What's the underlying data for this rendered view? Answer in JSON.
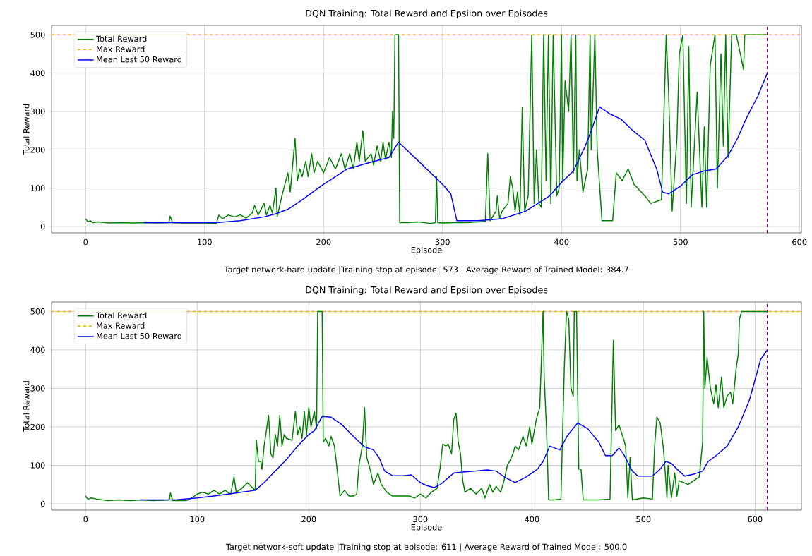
{
  "chart_data": [
    {
      "type": "line",
      "title": "DQN Training: Total Reward and Epsilon over Episodes",
      "xlabel": "Episode",
      "ylabel": "Total Reward",
      "xlim": [
        -28.65,
        601.65
      ],
      "ylim": [
        -16.6,
        524.6
      ],
      "xticks": [
        0,
        100,
        200,
        300,
        400,
        500,
        600
      ],
      "yticks": [
        0,
        100,
        200,
        300,
        400,
        500
      ],
      "grid": true,
      "legend": "top left",
      "series": [
        {
          "name": "Total Reward",
          "color": "#008000",
          "x": [
            0,
            2,
            4,
            6,
            10,
            20,
            30,
            40,
            50,
            60,
            70,
            71,
            73,
            80,
            90,
            100,
            110,
            112,
            115,
            120,
            125,
            130,
            135,
            140,
            142,
            145,
            150,
            152,
            155,
            157,
            160,
            161,
            165,
            170,
            172,
            176,
            178,
            180,
            182,
            185,
            187,
            190,
            192,
            195,
            200,
            205,
            210,
            215,
            218,
            222,
            225,
            228,
            230,
            233,
            235,
            240,
            242,
            245,
            248,
            250,
            252,
            255,
            257,
            258,
            259,
            260,
            262,
            263,
            264,
            270,
            280,
            290,
            294,
            295,
            296,
            300,
            310,
            320,
            330,
            336,
            338,
            340,
            345,
            346,
            348,
            350,
            355,
            357,
            359,
            361,
            363,
            365,
            367,
            369,
            372,
            375,
            377,
            379,
            381,
            383,
            385,
            387,
            389,
            391,
            393,
            396,
            398,
            400,
            401,
            403,
            406,
            408,
            410,
            412,
            413,
            415,
            418,
            422,
            424,
            425,
            428,
            430,
            434,
            443,
            446,
            451,
            456,
            461,
            470,
            475,
            484,
            488,
            490,
            493,
            497,
            499,
            502,
            505,
            507,
            509,
            514,
            518,
            520,
            522,
            525,
            529,
            531,
            534,
            536,
            538,
            540,
            543,
            547,
            553,
            554,
            573
          ],
          "values": [
            20,
            12,
            15,
            10,
            12,
            9,
            10,
            9,
            10,
            9,
            10,
            27,
            10,
            9,
            9,
            9,
            8,
            30,
            20,
            30,
            25,
            30,
            22,
            35,
            55,
            30,
            60,
            30,
            55,
            35,
            100,
            25,
            80,
            140,
            90,
            230,
            120,
            150,
            130,
            170,
            130,
            190,
            140,
            170,
            140,
            180,
            150,
            190,
            150,
            190,
            150,
            220,
            170,
            250,
            170,
            190,
            160,
            210,
            170,
            220,
            175,
            220,
            180,
            300,
            230,
            500,
            500,
            500,
            10,
            10,
            12,
            8,
            10,
            130,
            10,
            9,
            10,
            10,
            12,
            14,
            190,
            15,
            40,
            80,
            20,
            40,
            60,
            130,
            100,
            40,
            90,
            30,
            310,
            40,
            80,
            500,
            60,
            200,
            60,
            50,
            500,
            120,
            500,
            60,
            500,
            80,
            100,
            500,
            120,
            380,
            300,
            500,
            140,
            500,
            120,
            200,
            90,
            150,
            500,
            200,
            500,
            200,
            15,
            15,
            140,
            120,
            150,
            110,
            80,
            60,
            70,
            500,
            350,
            40,
            230,
            450,
            500,
            60,
            470,
            50,
            350,
            50,
            260,
            50,
            420,
            500,
            100,
            450,
            210,
            500,
            180,
            500,
            500,
            410,
            500,
            500
          ]
        },
        {
          "name": "Mean Last 50 Reward",
          "color": "#0000ff",
          "x": [
            49,
            100,
            110,
            130,
            150,
            160,
            170,
            180,
            200,
            220,
            240,
            255,
            263,
            280,
            300,
            307,
            312,
            330,
            350,
            370,
            390,
            400,
            410,
            420,
            425,
            432,
            440,
            450,
            460,
            470,
            480,
            485,
            490,
            500,
            510,
            520,
            530,
            540,
            548,
            555,
            565,
            573
          ],
          "values": [
            10,
            10,
            10,
            15,
            25,
            33,
            45,
            65,
            110,
            150,
            168,
            180,
            220,
            170,
            110,
            85,
            15,
            15,
            20,
            40,
            80,
            115,
            145,
            210,
            250,
            312,
            295,
            280,
            250,
            225,
            150,
            90,
            85,
            105,
            135,
            145,
            150,
            185,
            230,
            280,
            340,
            400
          ]
        }
      ],
      "ref_lines": [
        {
          "axis": "y",
          "value": 500,
          "label": "Max Reward",
          "color": "#ffa500",
          "line_style": "dashed"
        },
        {
          "axis": "x",
          "value": 573,
          "color": "#800080",
          "line_style": "dashed"
        }
      ],
      "annotations": [
        "Target network-hard update |Training stop at episode: 573 |  Average Reward of Trained Model: 384.7"
      ]
    },
    {
      "type": "line",
      "title": "DQN Training: Total Reward and Epsilon over Episodes",
      "xlabel": "Episode",
      "ylabel": "Total Reward",
      "xlim": [
        -30.55,
        641.55
      ],
      "ylim": [
        -16.6,
        524.6
      ],
      "xticks": [
        0,
        100,
        200,
        300,
        400,
        500,
        600
      ],
      "yticks": [
        0,
        100,
        200,
        300,
        400,
        500
      ],
      "grid": true,
      "legend": "top left",
      "series": [
        {
          "name": "Total Reward",
          "color": "#008000",
          "x": [
            0,
            2,
            5,
            10,
            20,
            30,
            40,
            50,
            60,
            70,
            75,
            76,
            78,
            90,
            95,
            100,
            105,
            110,
            115,
            120,
            125,
            130,
            133,
            135,
            140,
            145,
            150,
            152,
            153,
            155,
            157,
            158,
            160,
            164,
            166,
            168,
            170,
            172,
            174,
            176,
            178,
            180,
            185,
            188,
            190,
            192,
            194,
            196,
            198,
            200,
            202,
            205,
            207,
            208,
            210,
            212,
            213,
            215,
            218,
            220,
            223,
            225,
            228,
            232,
            236,
            240,
            243,
            245,
            248,
            250,
            252,
            255,
            258,
            262,
            265,
            270,
            275,
            280,
            290,
            295,
            300,
            305,
            310,
            315,
            318,
            320,
            323,
            325,
            328,
            330,
            332,
            334,
            336,
            338,
            340,
            345,
            350,
            355,
            358,
            362,
            365,
            368,
            372,
            375,
            378,
            380,
            383,
            385,
            388,
            392,
            395,
            398,
            400,
            404,
            407,
            410,
            411,
            413,
            415,
            420,
            426,
            429,
            431,
            433,
            435,
            437,
            438,
            440,
            442,
            444,
            446,
            460,
            470,
            473,
            475,
            478,
            482,
            484,
            486,
            488,
            490,
            500,
            508,
            510,
            512,
            515,
            518,
            520,
            521,
            522,
            525,
            528,
            530,
            532,
            540,
            550,
            553,
            554,
            555,
            557,
            560,
            563,
            565,
            567,
            570,
            572,
            575,
            578,
            580,
            583,
            585,
            586,
            588,
            611
          ],
          "values": [
            20,
            12,
            15,
            12,
            8,
            10,
            8,
            10,
            8,
            9,
            10,
            28,
            8,
            8,
            15,
            25,
            30,
            25,
            35,
            25,
            35,
            25,
            70,
            30,
            40,
            55,
            40,
            35,
            165,
            110,
            110,
            90,
            150,
            230,
            130,
            120,
            180,
            150,
            230,
            150,
            180,
            170,
            165,
            240,
            180,
            200,
            170,
            240,
            180,
            250,
            200,
            240,
            195,
            500,
            500,
            500,
            160,
            170,
            150,
            175,
            150,
            100,
            20,
            35,
            20,
            20,
            25,
            100,
            150,
            250,
            120,
            90,
            50,
            80,
            50,
            30,
            20,
            20,
            20,
            15,
            25,
            15,
            30,
            40,
            100,
            155,
            150,
            155,
            130,
            220,
            235,
            160,
            130,
            60,
            30,
            40,
            25,
            40,
            15,
            50,
            30,
            45,
            30,
            60,
            100,
            110,
            130,
            150,
            140,
            175,
            150,
            200,
            155,
            220,
            250,
            500,
            330,
            200,
            10,
            10,
            12,
            350,
            500,
            480,
            300,
            280,
            500,
            500,
            90,
            90,
            10,
            10,
            12,
            425,
            190,
            205,
            170,
            150,
            15,
            120,
            10,
            15,
            12,
            150,
            225,
            210,
            140,
            60,
            15,
            100,
            15,
            80,
            20,
            60,
            50,
            70,
            160,
            500,
            300,
            380,
            300,
            260,
            310,
            250,
            330,
            250,
            280,
            290,
            260,
            350,
            390,
            480,
            500,
            500
          ]
        },
        {
          "name": "Mean Last 50 Reward",
          "color": "#0000ff",
          "x": [
            49,
            80,
            100,
            120,
            140,
            152,
            160,
            170,
            180,
            190,
            200,
            205,
            212,
            220,
            230,
            240,
            250,
            258,
            263,
            268,
            275,
            285,
            292,
            300,
            305,
            312,
            318,
            330,
            340,
            350,
            360,
            368,
            375,
            385,
            395,
            405,
            410,
            416,
            425,
            432,
            441,
            450,
            460,
            466,
            472,
            478,
            482,
            490,
            495,
            508,
            515,
            520,
            525,
            530,
            537,
            545,
            553,
            558,
            565,
            575,
            585,
            595,
            605,
            611
          ],
          "values": [
            10,
            10,
            15,
            22,
            30,
            35,
            55,
            85,
            115,
            150,
            180,
            190,
            227,
            225,
            205,
            175,
            148,
            140,
            120,
            85,
            73,
            73,
            75,
            55,
            48,
            42,
            50,
            80,
            83,
            85,
            88,
            85,
            70,
            55,
            70,
            90,
            110,
            150,
            140,
            178,
            210,
            195,
            160,
            125,
            125,
            145,
            130,
            85,
            72,
            72,
            90,
            110,
            105,
            90,
            72,
            77,
            85,
            110,
            125,
            150,
            200,
            270,
            375,
            400
          ]
        }
      ],
      "ref_lines": [
        {
          "axis": "y",
          "value": 500,
          "label": "Max Reward",
          "color": "#ffa500",
          "line_style": "dashed"
        },
        {
          "axis": "x",
          "value": 611,
          "color": "#800080",
          "line_style": "dashed"
        }
      ],
      "annotations": [
        "Target network-soft update |Training stop at episode: 611 |  Average Reward of Trained Model: 500.0"
      ]
    }
  ]
}
